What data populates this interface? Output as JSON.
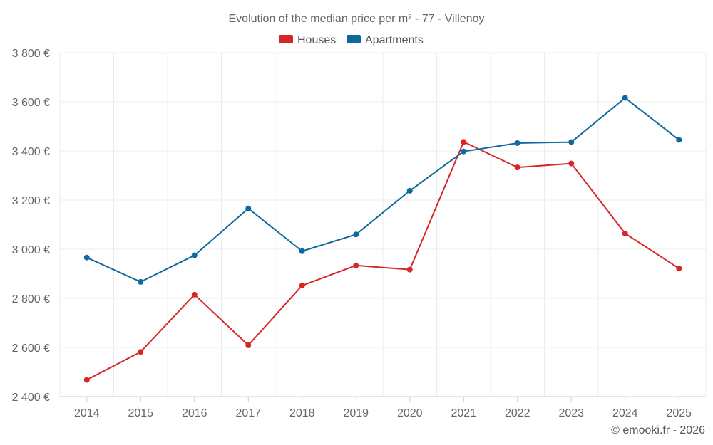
{
  "chart_data": {
    "type": "line",
    "title": "Evolution of the median price per m² - 77 - Villenoy",
    "categories": [
      "2014",
      "2015",
      "2016",
      "2017",
      "2018",
      "2019",
      "2020",
      "2021",
      "2022",
      "2023",
      "2024",
      "2025"
    ],
    "series": [
      {
        "name": "Houses",
        "color": "#d62728",
        "values": [
          2468,
          2582,
          2815,
          2609,
          2852,
          2934,
          2917,
          3437,
          3333,
          3349,
          3064,
          2922
        ]
      },
      {
        "name": "Apartments",
        "color": "#0e6a9e",
        "values": [
          2966,
          2867,
          2975,
          3166,
          2992,
          3060,
          3238,
          3398,
          3432,
          3436,
          3616,
          3445
        ]
      }
    ],
    "ylim": [
      2400,
      3800
    ],
    "yticks": [
      2400,
      2600,
      2800,
      3000,
      3200,
      3400,
      3600,
      3800
    ],
    "ytick_labels": [
      "2 400 €",
      "2 600 €",
      "2 800 €",
      "3 000 €",
      "3 200 €",
      "3 400 €",
      "3 600 €",
      "3 800 €"
    ],
    "xlabel": "",
    "ylabel": "",
    "grid": true,
    "legend_position": "top-center"
  },
  "credit": "© emooki.fr - 2026"
}
